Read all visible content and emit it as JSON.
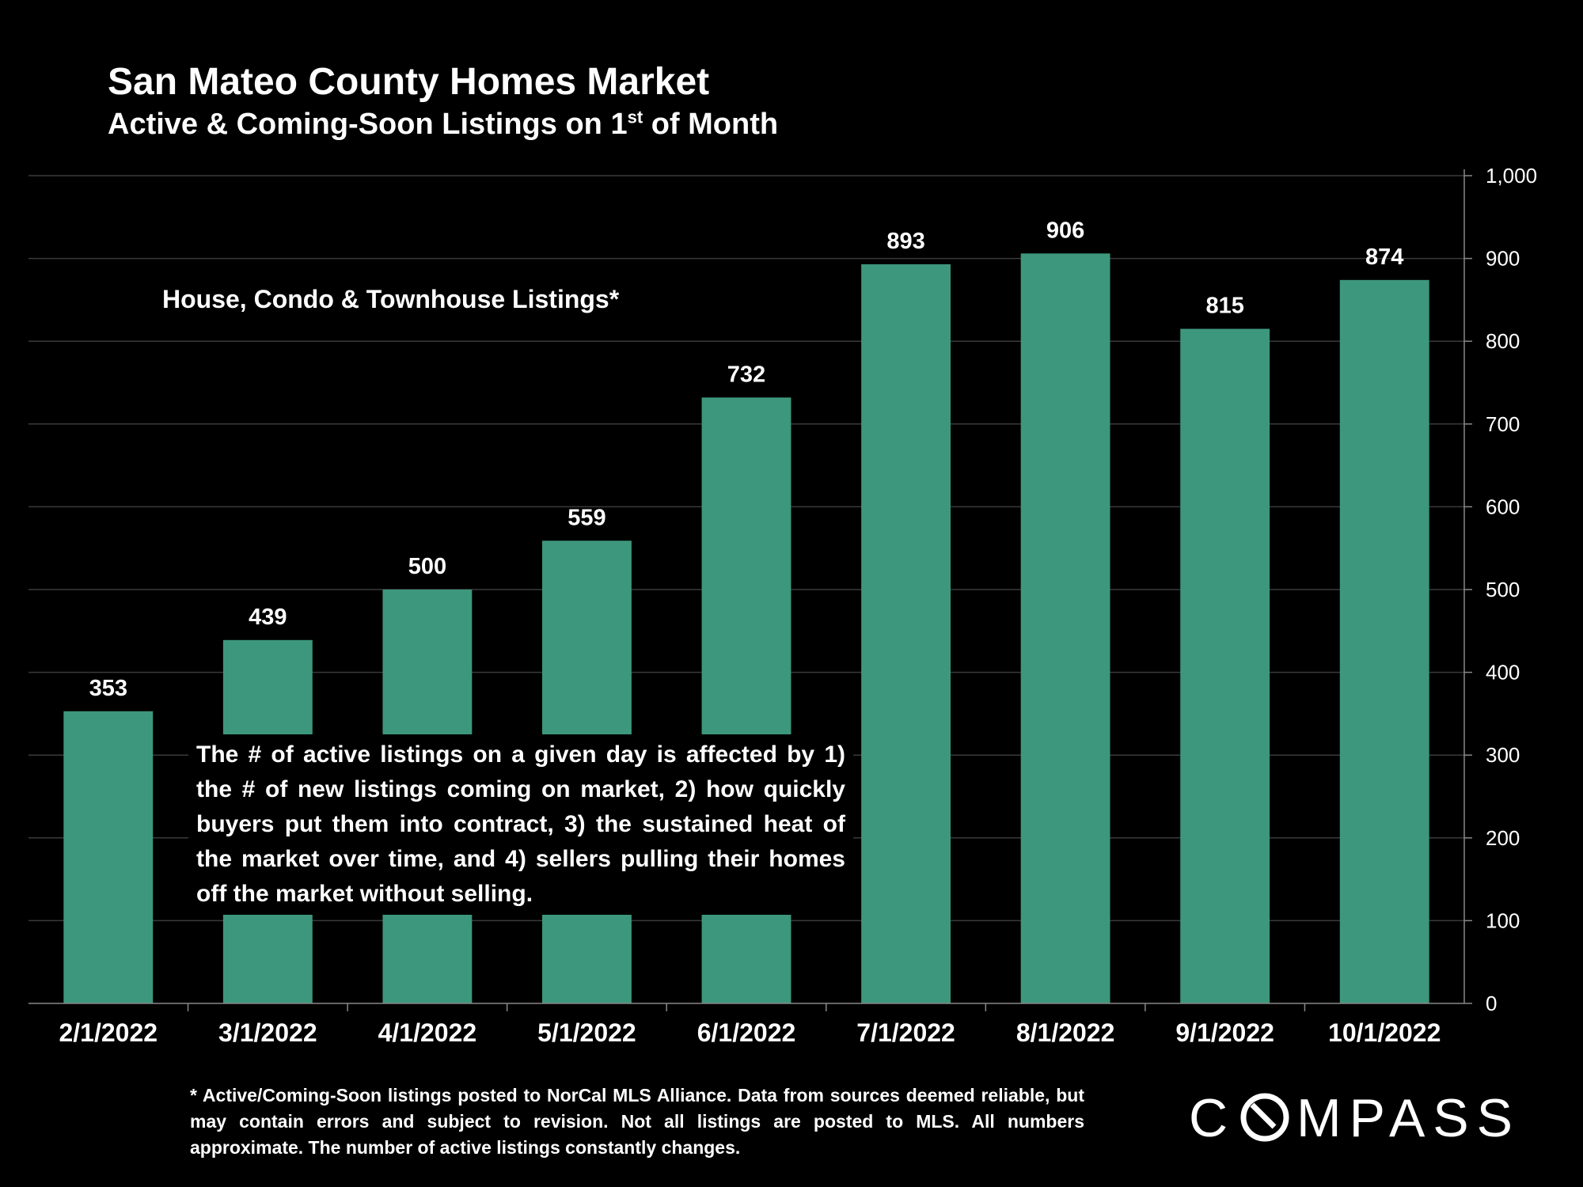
{
  "header": {
    "title": "San Mateo County Homes Market",
    "subtitle_main": "Active & Coming-Soon Listings on 1",
    "subtitle_sup": "st",
    "subtitle_tail": " of Month"
  },
  "chart_data": {
    "type": "bar",
    "title": "San Mateo County Homes Market",
    "subtitle": "Active & Coming-Soon Listings on 1st of Month",
    "categories": [
      "2/1/2022",
      "3/1/2022",
      "4/1/2022",
      "5/1/2022",
      "6/1/2022",
      "7/1/2022",
      "8/1/2022",
      "9/1/2022",
      "10/1/2022"
    ],
    "series": [
      {
        "values": [
          353,
          439,
          500,
          559,
          732,
          893,
          906,
          815,
          874
        ]
      }
    ],
    "data_labels": [
      "353",
      "439",
      "500",
      "559",
      "732",
      "893",
      "906",
      "815",
      "874"
    ],
    "ylim": [
      0,
      1000
    ],
    "y_ticks": [
      "0",
      "100",
      "200",
      "300",
      "400",
      "500",
      "600",
      "700",
      "800",
      "900",
      "1,000"
    ],
    "y_axis_side": "right",
    "grid": true,
    "bar_color": "#3d977c",
    "inset_label": "House, Condo & Townhouse Listings*",
    "annotation": "The # of active listings on a given day is affected by 1) the # of new listings coming on market, 2) how quickly buyers put them into contract, 3) the sustained heat of the market over time, and 4) sellers pulling their homes off the market without selling."
  },
  "footnote": "* Active/Coming-Soon listings posted to NorCal MLS Alliance.  Data from sources deemed reliable, but may contain errors and subject to revision.  Not all listings are posted to MLS. All numbers approximate. The number of active listings constantly changes.",
  "brand": {
    "logo": "COMPASS"
  },
  "colors": {
    "background": "#000000",
    "bar": "#3d977c",
    "text": "#ffffff",
    "grid": "#3a3a3a"
  }
}
